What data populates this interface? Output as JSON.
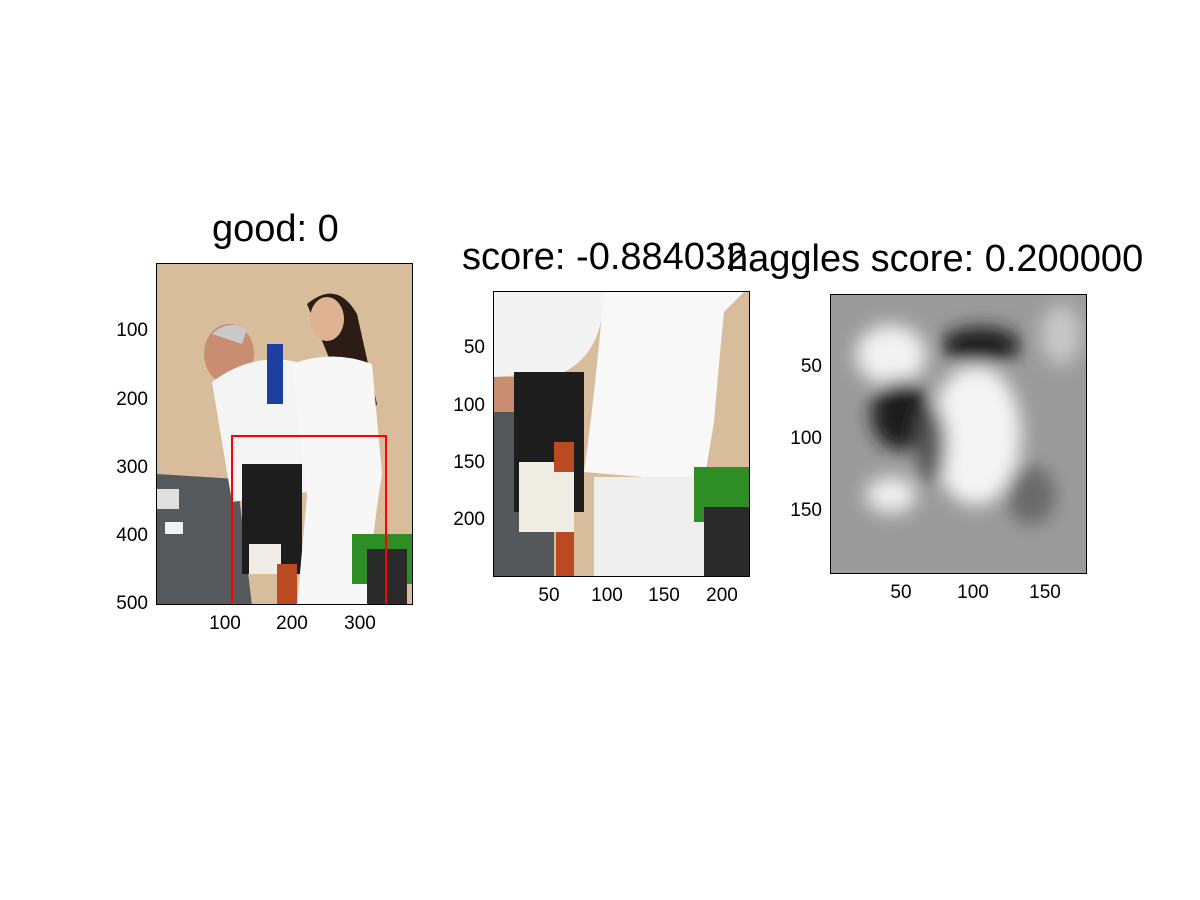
{
  "figure": {
    "panel1": {
      "title": "good: 0",
      "image_description": "photo of a nurse assisting an older man at a table",
      "yticks": [
        "100",
        "200",
        "300",
        "400",
        "500"
      ],
      "xticks": [
        "100",
        "200",
        "300"
      ],
      "bbox_color": "#ff0000"
    },
    "panel2": {
      "title": "score: -0.884032",
      "image_description": "cropped photo of the legs region",
      "yticks": [
        "50",
        "100",
        "150",
        "200"
      ],
      "xticks": [
        "50",
        "100",
        "150",
        "200"
      ]
    },
    "panel3": {
      "title": "haggles score: 0.200000",
      "image_description": "grayscale feature heatmap",
      "yticks": [
        "50",
        "100",
        "150"
      ],
      "xticks": [
        "50",
        "100",
        "150"
      ]
    }
  }
}
